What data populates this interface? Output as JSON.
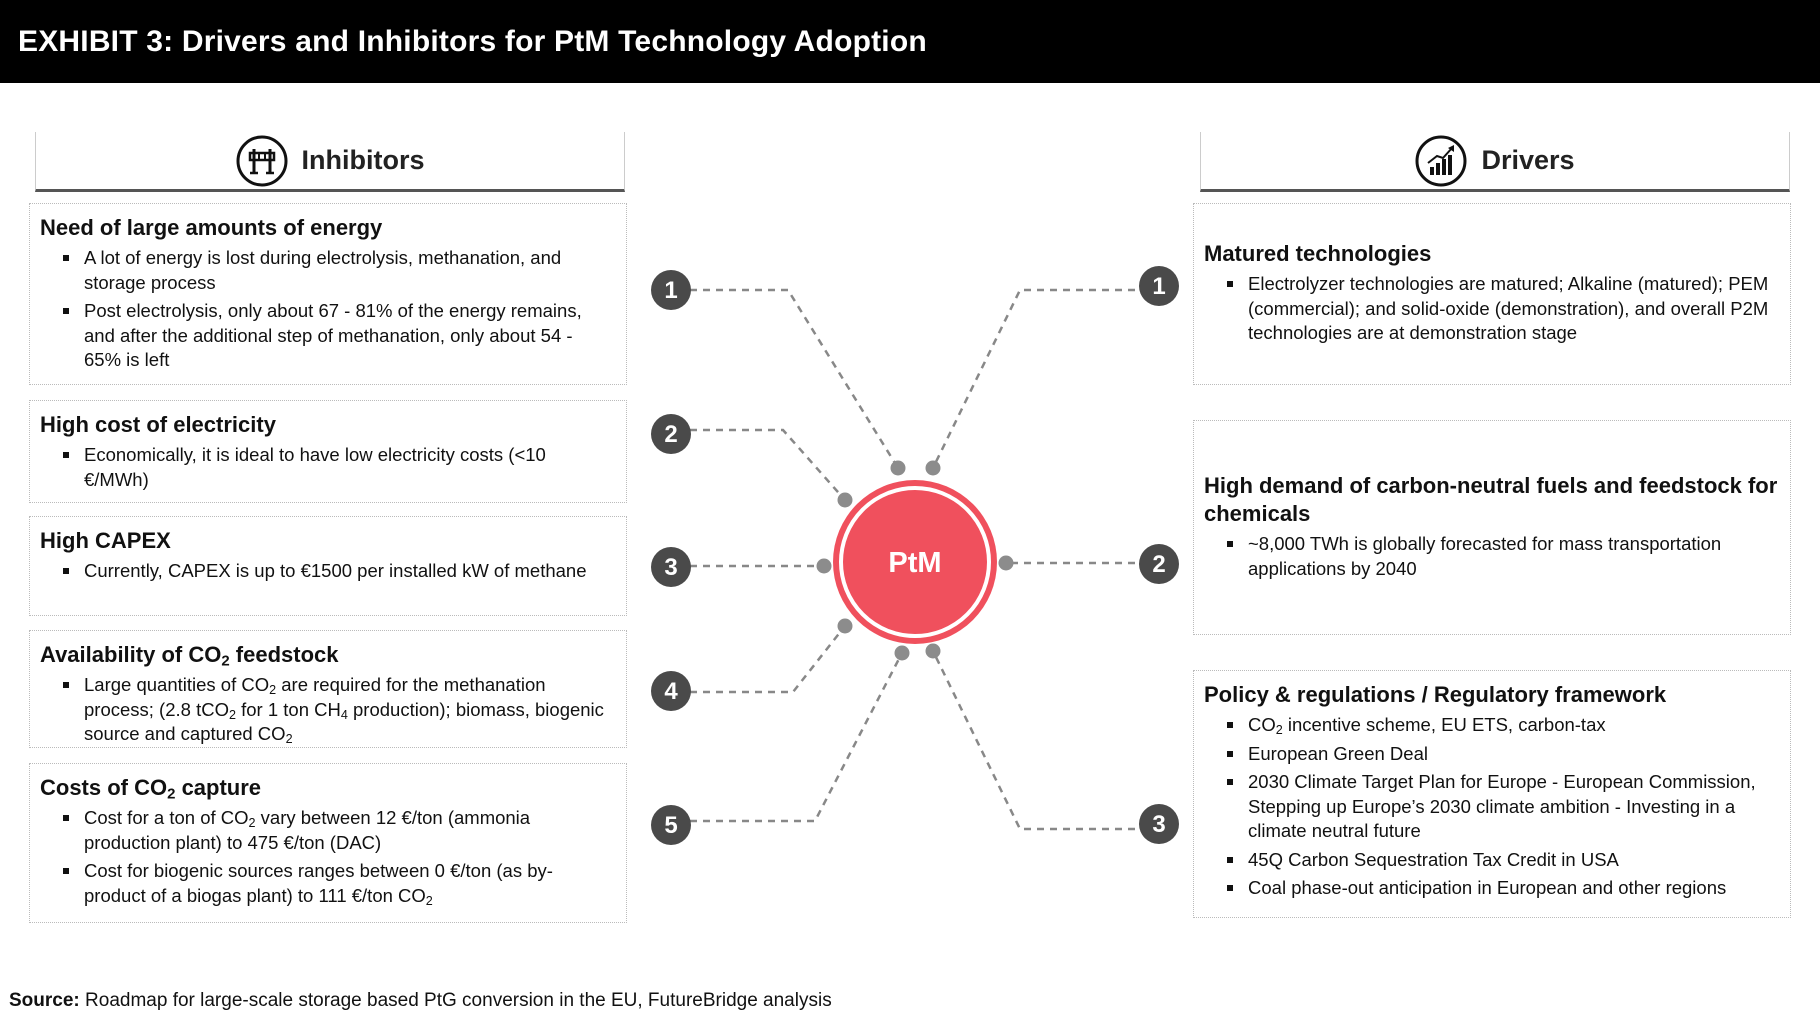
{
  "header": {
    "title": "EXHIBIT 3: Drivers and Inhibitors for PtM Technology Adoption"
  },
  "colors": {
    "accent": "#f0505d",
    "badge": "#4a4a4a",
    "connector": "#888888"
  },
  "inhibitors": {
    "title": "Inhibitors",
    "icon": "barrier-icon",
    "items": [
      {
        "number": "1",
        "title": "Need of large amounts of energy",
        "bullets": [
          "A lot of energy is lost during electrolysis, methanation, and storage process",
          "Post electrolysis, only about 67 - 81% of the energy remains, and after the additional step of methanation, only about 54 - 65% is left"
        ]
      },
      {
        "number": "2",
        "title": "High cost of electricity",
        "bullets": [
          "Economically, it is ideal to have low electricity costs (<10 €/MWh)"
        ]
      },
      {
        "number": "3",
        "title": "High CAPEX",
        "bullets": [
          "Currently, CAPEX is up to €1500 per installed kW of methane"
        ]
      },
      {
        "number": "4",
        "title_parts": {
          "before": "Availability of CO",
          "sub": "2",
          "after": " feedstock"
        },
        "bullets_rich": [
          {
            "t1": "Large quantities of CO",
            "s1": "2",
            "t2": " are required for the methanation process; (2.8 tCO",
            "s2": "2",
            "t3": " for 1 ton CH",
            "s3": "4",
            "t4": " production); biomass, biogenic source and captured CO",
            "s4": "2",
            "t5": ""
          }
        ]
      },
      {
        "number": "5",
        "title_parts": {
          "before": "Costs of CO",
          "sub": "2",
          "after": " capture"
        },
        "bullets_rich": [
          {
            "t1": "Cost for a ton of CO",
            "s1": "2",
            "t2": " vary between 12 €/ton (ammonia production plant) to 475 €/ton (DAC)"
          },
          {
            "t1": "Cost for biogenic sources ranges between 0 €/ton (as by-product of a biogas plant) to 111 €/ton CO",
            "s1": "2",
            "t2": ""
          }
        ]
      }
    ]
  },
  "drivers": {
    "title": "Drivers",
    "icon": "growth-chart-icon",
    "items": [
      {
        "number": "1",
        "title": "Matured technologies",
        "bullets": [
          "Electrolyzer technologies are matured; Alkaline (matured); PEM (commercial); and solid-oxide (demonstration), and overall P2M technologies are at demonstration stage"
        ]
      },
      {
        "number": "2",
        "title": "High demand of carbon-neutral fuels and feedstock for chemicals",
        "bullets": [
          "~8,000 TWh is globally forecasted for mass transportation applications by 2040"
        ]
      },
      {
        "number": "3",
        "title": "Policy & regulations / Regulatory framework",
        "bullet_first": {
          "t1": "CO",
          "s1": "2",
          "t2": " incentive scheme, EU ETS, carbon-tax"
        },
        "bullets": [
          "European Green Deal",
          "2030 Climate Target Plan for Europe - European Commission, Stepping up Europe’s 2030 climate ambition - Investing in a climate neutral future",
          "45Q Carbon Sequestration Tax Credit in USA",
          "Coal phase-out anticipation in European and other regions"
        ]
      }
    ]
  },
  "center": {
    "label": "PtM"
  },
  "source": {
    "label": "Source:",
    "text": " Roadmap for large-scale storage based PtG conversion in the EU, FutureBridge analysis"
  }
}
